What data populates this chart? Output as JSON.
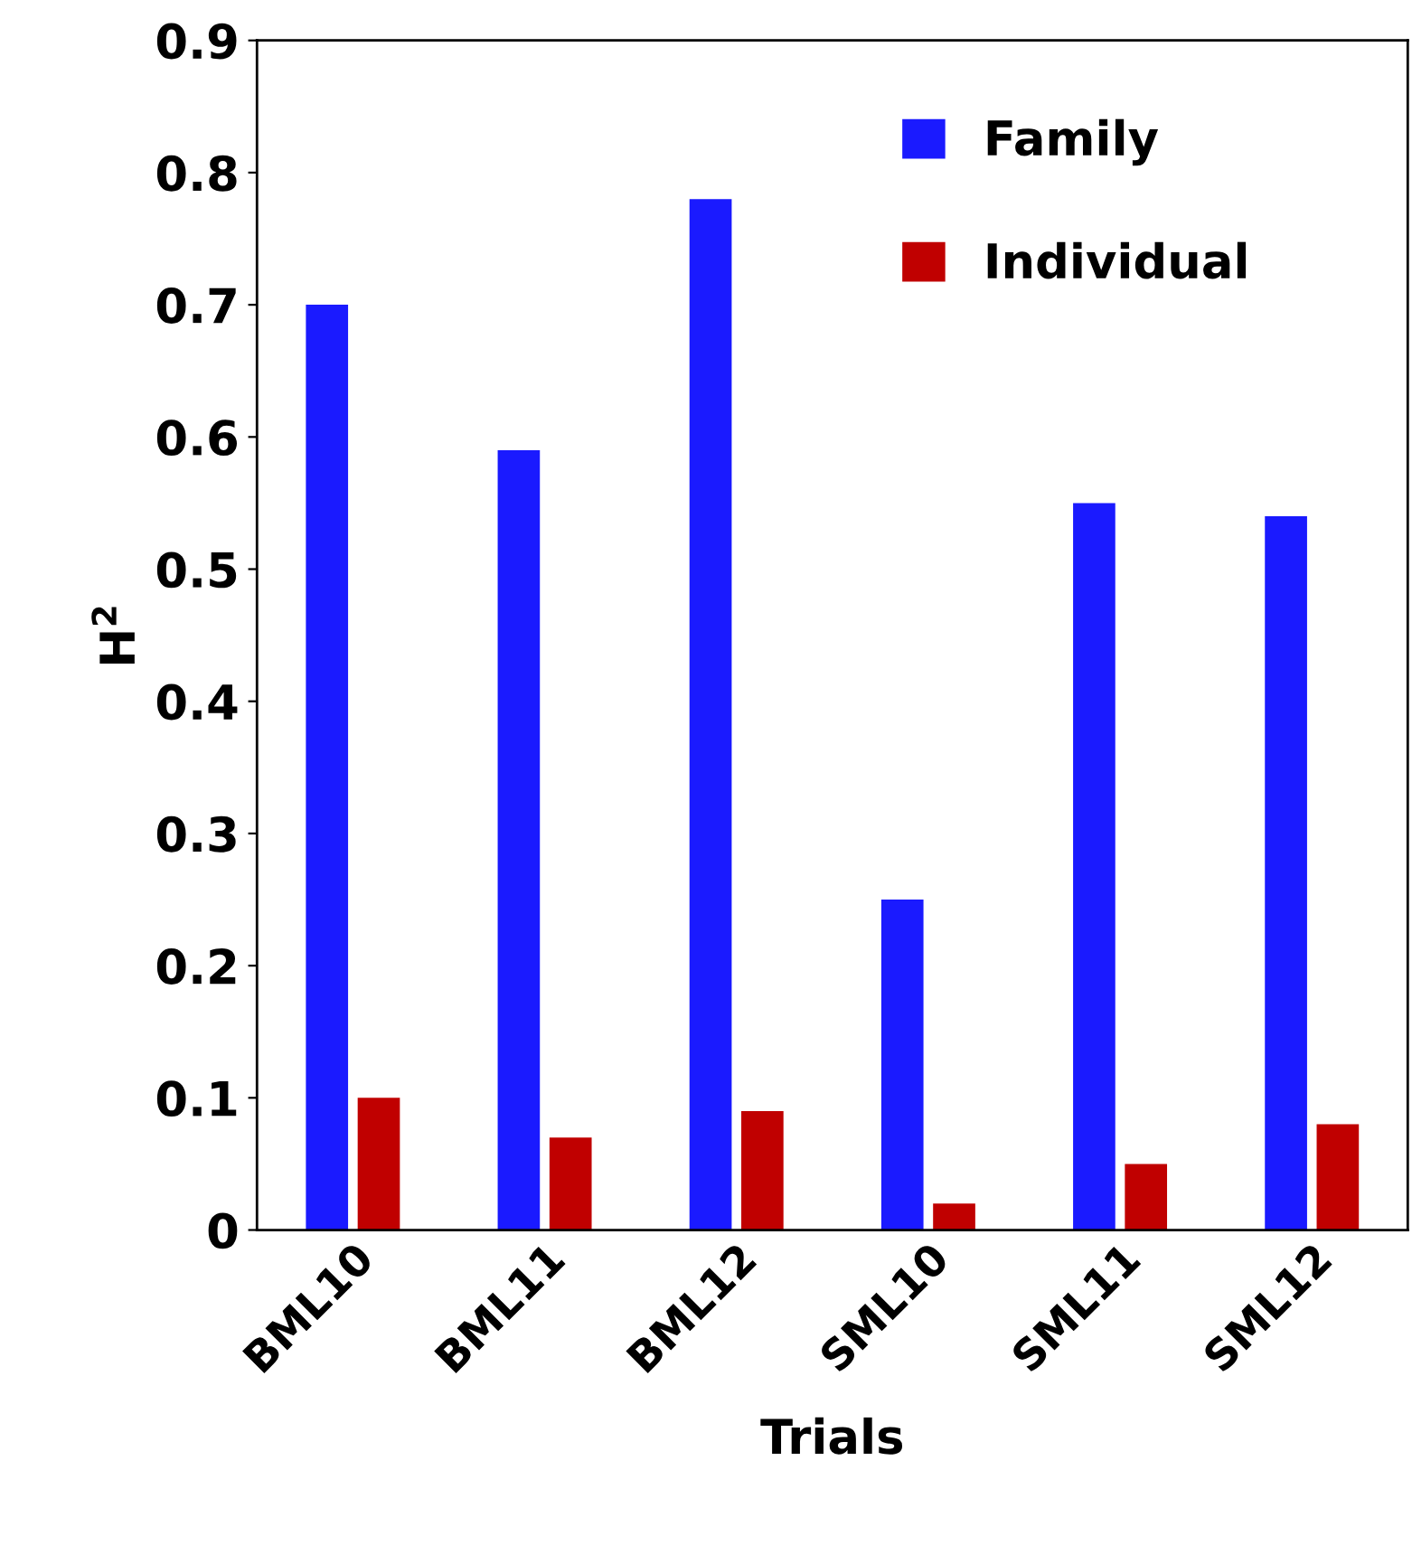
{
  "chart_data": {
    "type": "bar",
    "xlabel": "Trials",
    "ylabel": "H$^{2}$",
    "categories": [
      "BML10",
      "BML11",
      "BML12",
      "SML10",
      "SML11",
      "SML12"
    ],
    "series": [
      {
        "name": "Family",
        "color": "#1a1aff",
        "values": [
          0.7,
          0.59,
          0.78,
          0.25,
          0.55,
          0.54
        ]
      },
      {
        "name": "Individual",
        "color": "#c00000",
        "values": [
          0.1,
          0.07,
          0.09,
          0.02,
          0.05,
          0.08
        ]
      }
    ],
    "ylim": [
      0,
      0.9
    ],
    "yticks": [
      0,
      0.1,
      0.2,
      0.3,
      0.4,
      0.5,
      0.6,
      0.7,
      0.8,
      0.9
    ],
    "grid": false,
    "legend": "top right"
  }
}
